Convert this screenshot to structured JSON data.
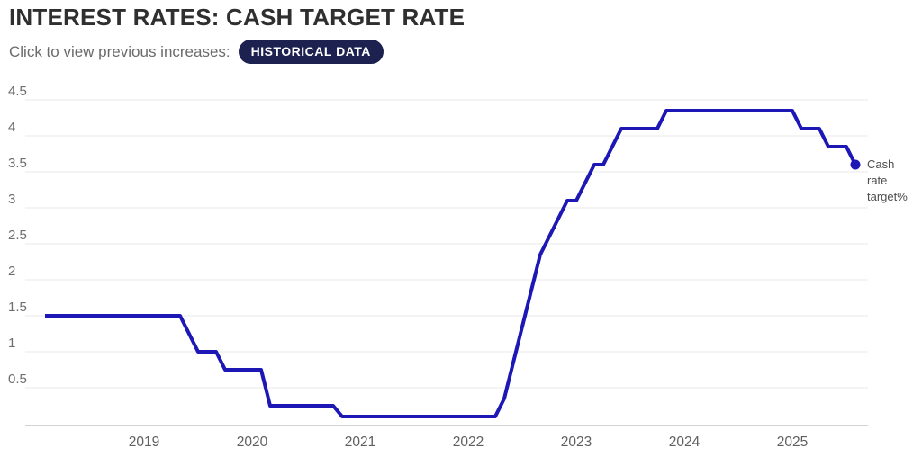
{
  "header": {
    "title": "INTEREST RATES: CASH TARGET RATE",
    "subtitle": "Click to view previous increases:",
    "button_label": "HISTORICAL DATA"
  },
  "colors": {
    "line": "#1d17b5",
    "button_bg": "#1d2150",
    "button_text": "#ffffff",
    "grid": "#e9e9e9",
    "axis": "#c4c4c4",
    "tick_text": "#6d6d6d"
  },
  "chart_data": {
    "type": "line",
    "title": "",
    "xlabel": "",
    "ylabel": "",
    "x_unit": "month",
    "start_month": "2018-02",
    "end_month": "2025-08",
    "ylim": [
      0,
      4.5
    ],
    "grid": true,
    "legend_position": "right-of-line-end",
    "y_ticks": [
      "4.5",
      "4",
      "3.5",
      "3",
      "2.5",
      "2",
      "1.5",
      "1",
      "0.5"
    ],
    "x_ticks": [
      "2019",
      "2020",
      "2021",
      "2022",
      "2023",
      "2024",
      "2025"
    ],
    "series": [
      {
        "name": "Cash rate target%",
        "color": "#1d17b5",
        "end_marker": true,
        "last_value": 3.6,
        "values": [
          1.5,
          1.5,
          1.5,
          1.5,
          1.5,
          1.5,
          1.5,
          1.5,
          1.5,
          1.5,
          1.5,
          1.5,
          1.5,
          1.5,
          1.5,
          1.5,
          1.25,
          1.0,
          1.0,
          1.0,
          0.75,
          0.75,
          0.75,
          0.75,
          0.75,
          0.25,
          0.25,
          0.25,
          0.25,
          0.25,
          0.25,
          0.25,
          0.25,
          0.1,
          0.1,
          0.1,
          0.1,
          0.1,
          0.1,
          0.1,
          0.1,
          0.1,
          0.1,
          0.1,
          0.1,
          0.1,
          0.1,
          0.1,
          0.1,
          0.1,
          0.1,
          0.35,
          0.85,
          1.35,
          1.85,
          2.35,
          2.6,
          2.85,
          3.1,
          3.1,
          3.35,
          3.6,
          3.6,
          3.85,
          4.1,
          4.1,
          4.1,
          4.1,
          4.1,
          4.35,
          4.35,
          4.35,
          4.35,
          4.35,
          4.35,
          4.35,
          4.35,
          4.35,
          4.35,
          4.35,
          4.35,
          4.35,
          4.35,
          4.35,
          4.1,
          4.1,
          4.1,
          3.85,
          3.85,
          3.85,
          3.6
        ]
      }
    ]
  }
}
